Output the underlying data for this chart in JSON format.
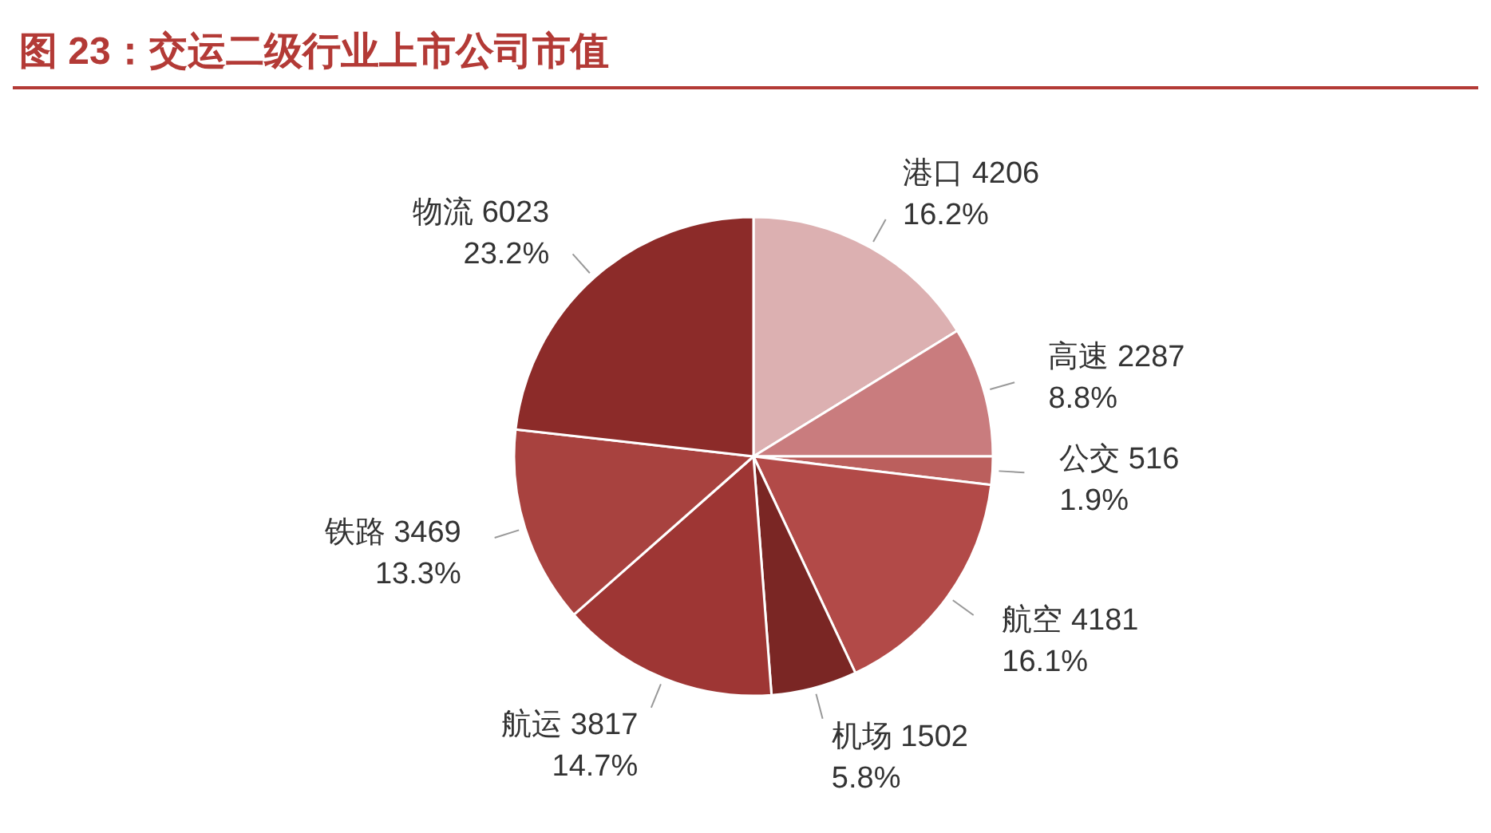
{
  "chart_data": {
    "type": "pie",
    "title": "图 23：交运二级行业上市公司市值",
    "categories": [
      "港口 4206",
      "高速 2287",
      "公交 516",
      "航空 4181",
      "机场 1502",
      "航运 3817",
      "铁路 3469",
      "物流 6023"
    ],
    "values": [
      16.2,
      8.8,
      1.9,
      16.1,
      5.8,
      14.7,
      13.3,
      23.2
    ],
    "value_labels": [
      "16.2%",
      "8.8%",
      "1.9%",
      "16.1%",
      "5.8%",
      "14.7%",
      "13.3%",
      "23.2%"
    ],
    "colors": [
      "#dcb0b1",
      "#c97c7e",
      "#bb5f5d",
      "#b24a48",
      "#7a2624",
      "#9e3634",
      "#a8423f",
      "#8c2b29"
    ],
    "data_labels": true
  }
}
